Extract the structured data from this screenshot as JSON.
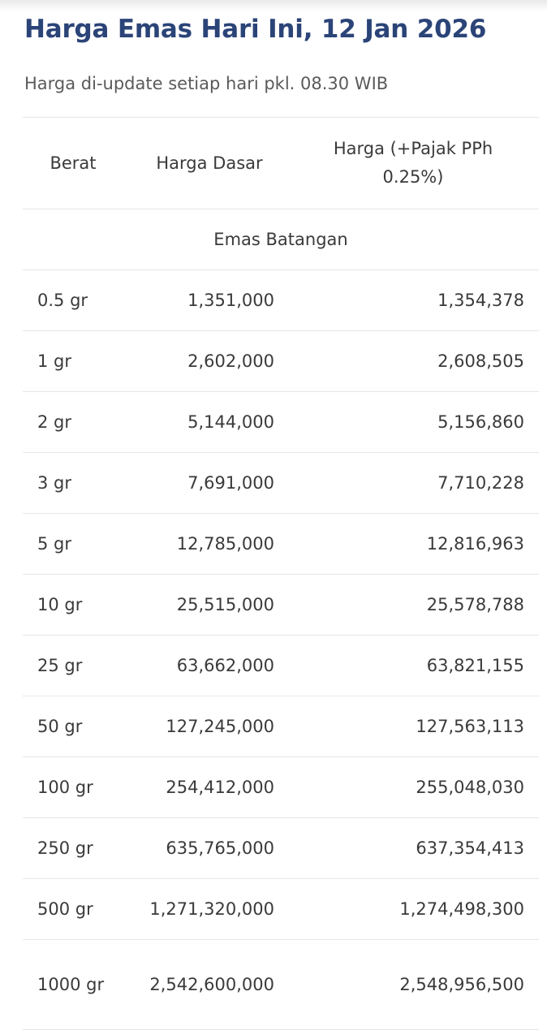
{
  "header": {
    "title": "Harga Emas Hari Ini, 12 Jan 2026",
    "subtitle": "Harga di-update setiap hari pkl. 08.30 WIB"
  },
  "table": {
    "columns": {
      "berat": "Berat",
      "harga_dasar": "Harga Dasar",
      "harga_pajak": "Harga (+Pajak PPh 0.25%)"
    },
    "section_label": "Emas Batangan",
    "rows": [
      {
        "berat": "0.5 gr",
        "harga_dasar": "1,351,000",
        "harga_pajak": "1,354,378"
      },
      {
        "berat": "1 gr",
        "harga_dasar": "2,602,000",
        "harga_pajak": "2,608,505"
      },
      {
        "berat": "2 gr",
        "harga_dasar": "5,144,000",
        "harga_pajak": "5,156,860"
      },
      {
        "berat": "3 gr",
        "harga_dasar": "7,691,000",
        "harga_pajak": "7,710,228"
      },
      {
        "berat": "5 gr",
        "harga_dasar": "12,785,000",
        "harga_pajak": "12,816,963"
      },
      {
        "berat": "10 gr",
        "harga_dasar": "25,515,000",
        "harga_pajak": "25,578,788"
      },
      {
        "berat": "25 gr",
        "harga_dasar": "63,662,000",
        "harga_pajak": "63,821,155"
      },
      {
        "berat": "50 gr",
        "harga_dasar": "127,245,000",
        "harga_pajak": "127,563,113"
      },
      {
        "berat": "100 gr",
        "harga_dasar": "254,412,000",
        "harga_pajak": "255,048,030"
      },
      {
        "berat": "250 gr",
        "harga_dasar": "635,765,000",
        "harga_pajak": "637,354,413"
      },
      {
        "berat": "500 gr",
        "harga_dasar": "1,271,320,000",
        "harga_pajak": "1,274,498,300"
      },
      {
        "berat": "1000 gr",
        "harga_dasar": "2,542,600,000",
        "harga_pajak": "2,548,956,500"
      }
    ]
  },
  "colors": {
    "title": "#2b4478",
    "text": "#3a3a3a",
    "divider": "#e6e6e6"
  }
}
